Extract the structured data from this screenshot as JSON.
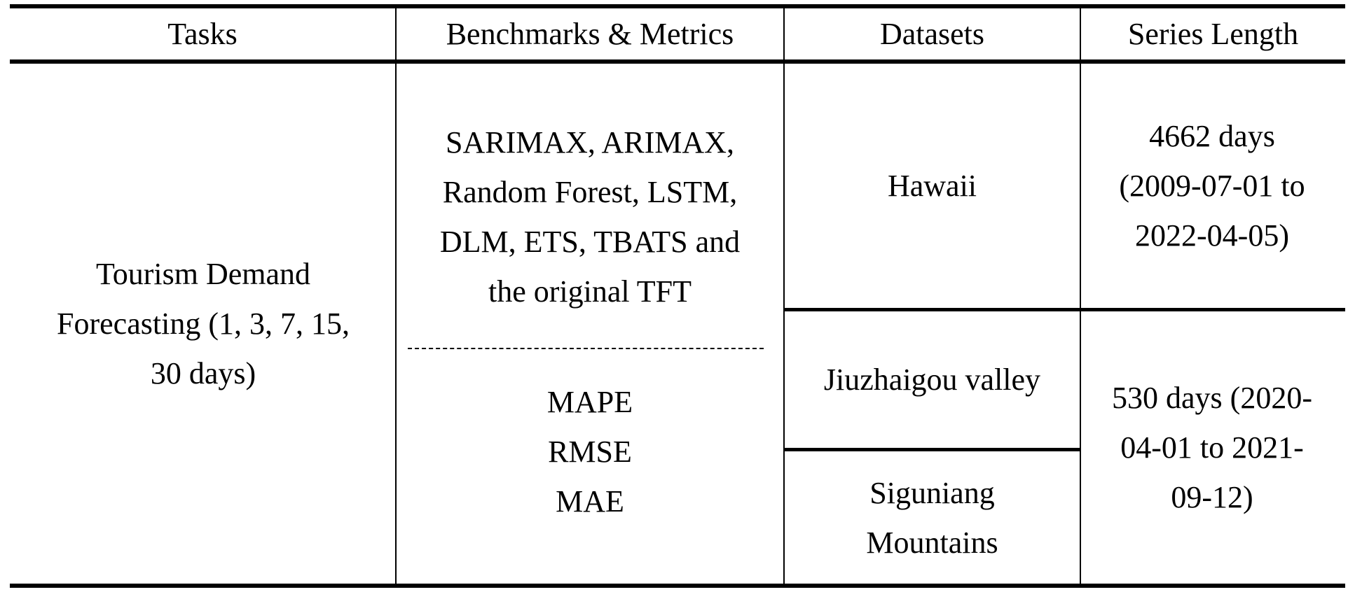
{
  "headers": {
    "tasks": "Tasks",
    "benchmarks": "Benchmarks & Metrics",
    "datasets": "Datasets",
    "series_length": "Series Length"
  },
  "row": {
    "task": "Tourism Demand\nForecasting (1, 3, 7, 15,\n30 days)",
    "benchmarks": "SARIMAX, ARIMAX,\nRandom Forest, LSTM,\nDLM, ETS, TBATS and\nthe original TFT",
    "metrics": "MAPE\nRMSE\nMAE",
    "datasets": {
      "hawaii": "Hawaii",
      "jiuzhaigou": "Jiuzhaigou valley",
      "siguniang": "Siguniang\nMountains"
    },
    "series_length": {
      "hawaii": "4662 days\n(2009-07-01 to\n2022-04-05)",
      "jiuzhaigou_siguniang": "530 days (2020-\n04-01 to 2021-\n09-12)"
    }
  }
}
